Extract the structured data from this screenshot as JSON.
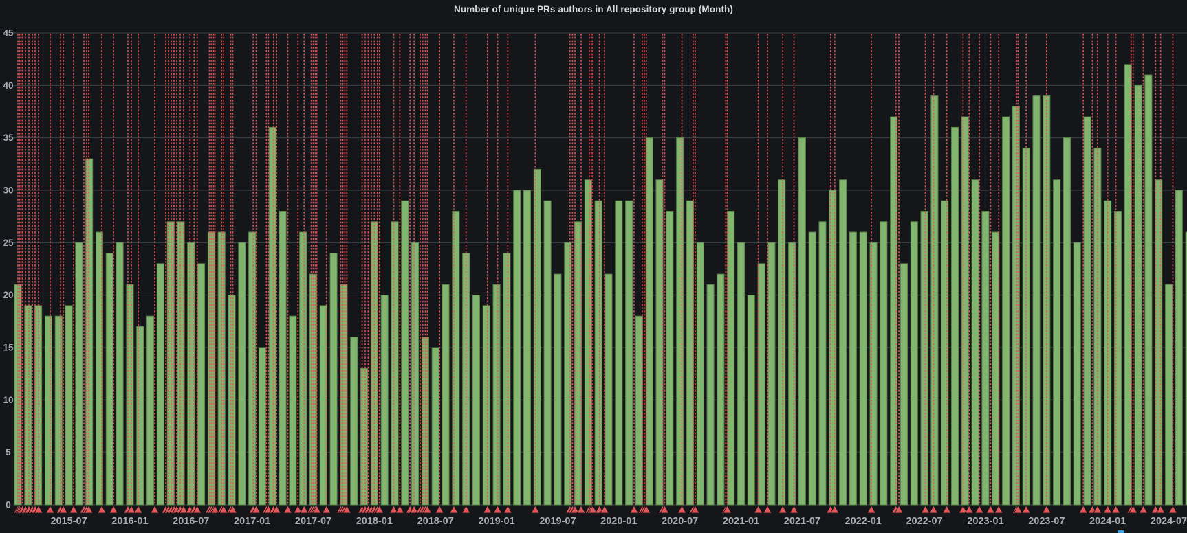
{
  "panel": {
    "title": "Number of unique PRs authors in All repository group (Month)"
  },
  "chart_data": {
    "type": "bar",
    "title": "Number of unique PRs authors in All repository group (Month)",
    "series_name": "PRs authors",
    "xlabel": "",
    "ylabel": "",
    "ylim": [
      0,
      45
    ],
    "grid": true,
    "legend_position": "none",
    "y_ticks": [
      0,
      5,
      10,
      15,
      20,
      25,
      30,
      35,
      40,
      45
    ],
    "x_tick_labels": [
      "2015-07",
      "2016-01",
      "2016-07",
      "2017-01",
      "2017-07",
      "2018-01",
      "2018-07",
      "2019-01",
      "2019-07",
      "2020-01",
      "2020-07",
      "2021-01",
      "2021-07",
      "2022-01",
      "2022-07",
      "2023-01",
      "2023-07",
      "2024-01",
      "2024-07"
    ],
    "categories": [
      "2015-02",
      "2015-03",
      "2015-04",
      "2015-05",
      "2015-06",
      "2015-07",
      "2015-08",
      "2015-09",
      "2015-10",
      "2015-11",
      "2015-12",
      "2016-01",
      "2016-02",
      "2016-03",
      "2016-04",
      "2016-05",
      "2016-06",
      "2016-07",
      "2016-08",
      "2016-09",
      "2016-10",
      "2016-11",
      "2016-12",
      "2017-01",
      "2017-02",
      "2017-03",
      "2017-04",
      "2017-05",
      "2017-06",
      "2017-07",
      "2017-08",
      "2017-09",
      "2017-10",
      "2017-11",
      "2017-12",
      "2018-01",
      "2018-02",
      "2018-03",
      "2018-04",
      "2018-05",
      "2018-06",
      "2018-07",
      "2018-08",
      "2018-09",
      "2018-10",
      "2018-11",
      "2018-12",
      "2019-01",
      "2019-02",
      "2019-03",
      "2019-04",
      "2019-05",
      "2019-06",
      "2019-07",
      "2019-08",
      "2019-09",
      "2019-10",
      "2019-11",
      "2019-12",
      "2020-01",
      "2020-02",
      "2020-03",
      "2020-04",
      "2020-05",
      "2020-06",
      "2020-07",
      "2020-08",
      "2020-09",
      "2020-10",
      "2020-11",
      "2020-12",
      "2021-01",
      "2021-02",
      "2021-03",
      "2021-04",
      "2021-05",
      "2021-06",
      "2021-07",
      "2021-08",
      "2021-09",
      "2021-10",
      "2021-11",
      "2021-12",
      "2022-01",
      "2022-02",
      "2022-03",
      "2022-04",
      "2022-05",
      "2022-06",
      "2022-07",
      "2022-08",
      "2022-09",
      "2022-10",
      "2022-11",
      "2022-12",
      "2023-01",
      "2023-02",
      "2023-03",
      "2023-04",
      "2023-05",
      "2023-06",
      "2023-07",
      "2023-08",
      "2023-09",
      "2023-10",
      "2023-11",
      "2023-12",
      "2024-01",
      "2024-02",
      "2024-03",
      "2024-04",
      "2024-05",
      "2024-06",
      "2024-07",
      "2024-08",
      "2024-09"
    ],
    "values": [
      21,
      19,
      19,
      18,
      18,
      19,
      25,
      33,
      26,
      24,
      25,
      21,
      17,
      18,
      23,
      27,
      27,
      25,
      23,
      26,
      26,
      20,
      25,
      26,
      15,
      36,
      28,
      18,
      26,
      22,
      19,
      24,
      21,
      16,
      13,
      27,
      20,
      27,
      29,
      25,
      16,
      15,
      21,
      28,
      24,
      20,
      19,
      21,
      24,
      30,
      30,
      32,
      29,
      22,
      25,
      27,
      31,
      29,
      22,
      29,
      29,
      18,
      35,
      31,
      28,
      35,
      29,
      25,
      21,
      22,
      28,
      25,
      20,
      23,
      25,
      31,
      25,
      35,
      26,
      27,
      30,
      31,
      26,
      26,
      25,
      27,
      37,
      23,
      27,
      28,
      39,
      29,
      36,
      37,
      31,
      28,
      26,
      37,
      38,
      34,
      39,
      39,
      31,
      35,
      25,
      37,
      34,
      29,
      28,
      42,
      40,
      41,
      31,
      21,
      30,
      26
    ],
    "annotation_month_offsets": [
      0,
      0.15,
      0.3,
      0.45,
      0.74,
      1.08,
      1.42,
      1.69,
      2.03,
      3.17,
      4.19,
      4.46,
      5.47,
      6.48,
      6.75,
      6.96,
      8.24,
      9.39,
      10.8,
      11.14,
      11.82,
      13.44,
      14.52,
      14.79,
      15.06,
      15.33,
      15.6,
      15.94,
      16.27,
      16.9,
      17.3,
      17.6,
      18.8,
      19.0,
      19.2,
      19.35,
      20.0,
      20.2,
      20.9,
      21.1,
      23.1,
      23.4,
      24.4,
      24.6,
      25.1,
      25.4,
      26.5,
      27.5,
      28.1,
      28.8,
      29.0,
      29.2,
      29.35,
      30.3,
      31.7,
      31.9,
      32.1,
      32.3,
      33.8,
      34.1,
      34.4,
      34.7,
      35.0,
      35.3,
      35.5,
      36.9,
      37.5,
      38.5,
      38.9,
      39.5,
      39.75,
      40.0,
      40.2,
      41.4,
      42.8,
      44.0,
      46.1,
      47.1,
      48.1,
      50.8,
      54.2,
      54.45,
      54.7,
      55.3,
      56.1,
      56.3,
      56.45,
      57.1,
      57.6,
      60.5,
      61.3,
      61.5,
      61.7,
      63.3,
      63.5,
      65.2,
      66.3,
      66.5,
      69.5,
      69.65,
      72.7,
      73.6,
      75.1,
      76.2,
      79.8,
      80.2,
      83.8,
      86.2,
      86.5,
      89.1,
      89.9,
      91.2,
      92.8,
      93.4,
      94.4,
      95.5,
      96.3,
      98.05,
      98.2,
      99.0,
      101.0,
      104.6,
      105.5,
      106.0,
      107.0,
      107.8,
      109.3,
      109.5,
      110.5,
      111.7,
      112.2,
      113.4
    ],
    "colors": {
      "background": "#141619",
      "bar_fill": "#82b56f",
      "bar_border": "#5d8a4a",
      "annotation_line": "#e0575c",
      "annotation_marker": "#e0575c",
      "grid_line": "rgba(216,222,230,0.22)",
      "tick_text": "#a7adb5",
      "title_text": "#d8d9da",
      "legend_swatch_blue": "#3aa0e0"
    }
  }
}
